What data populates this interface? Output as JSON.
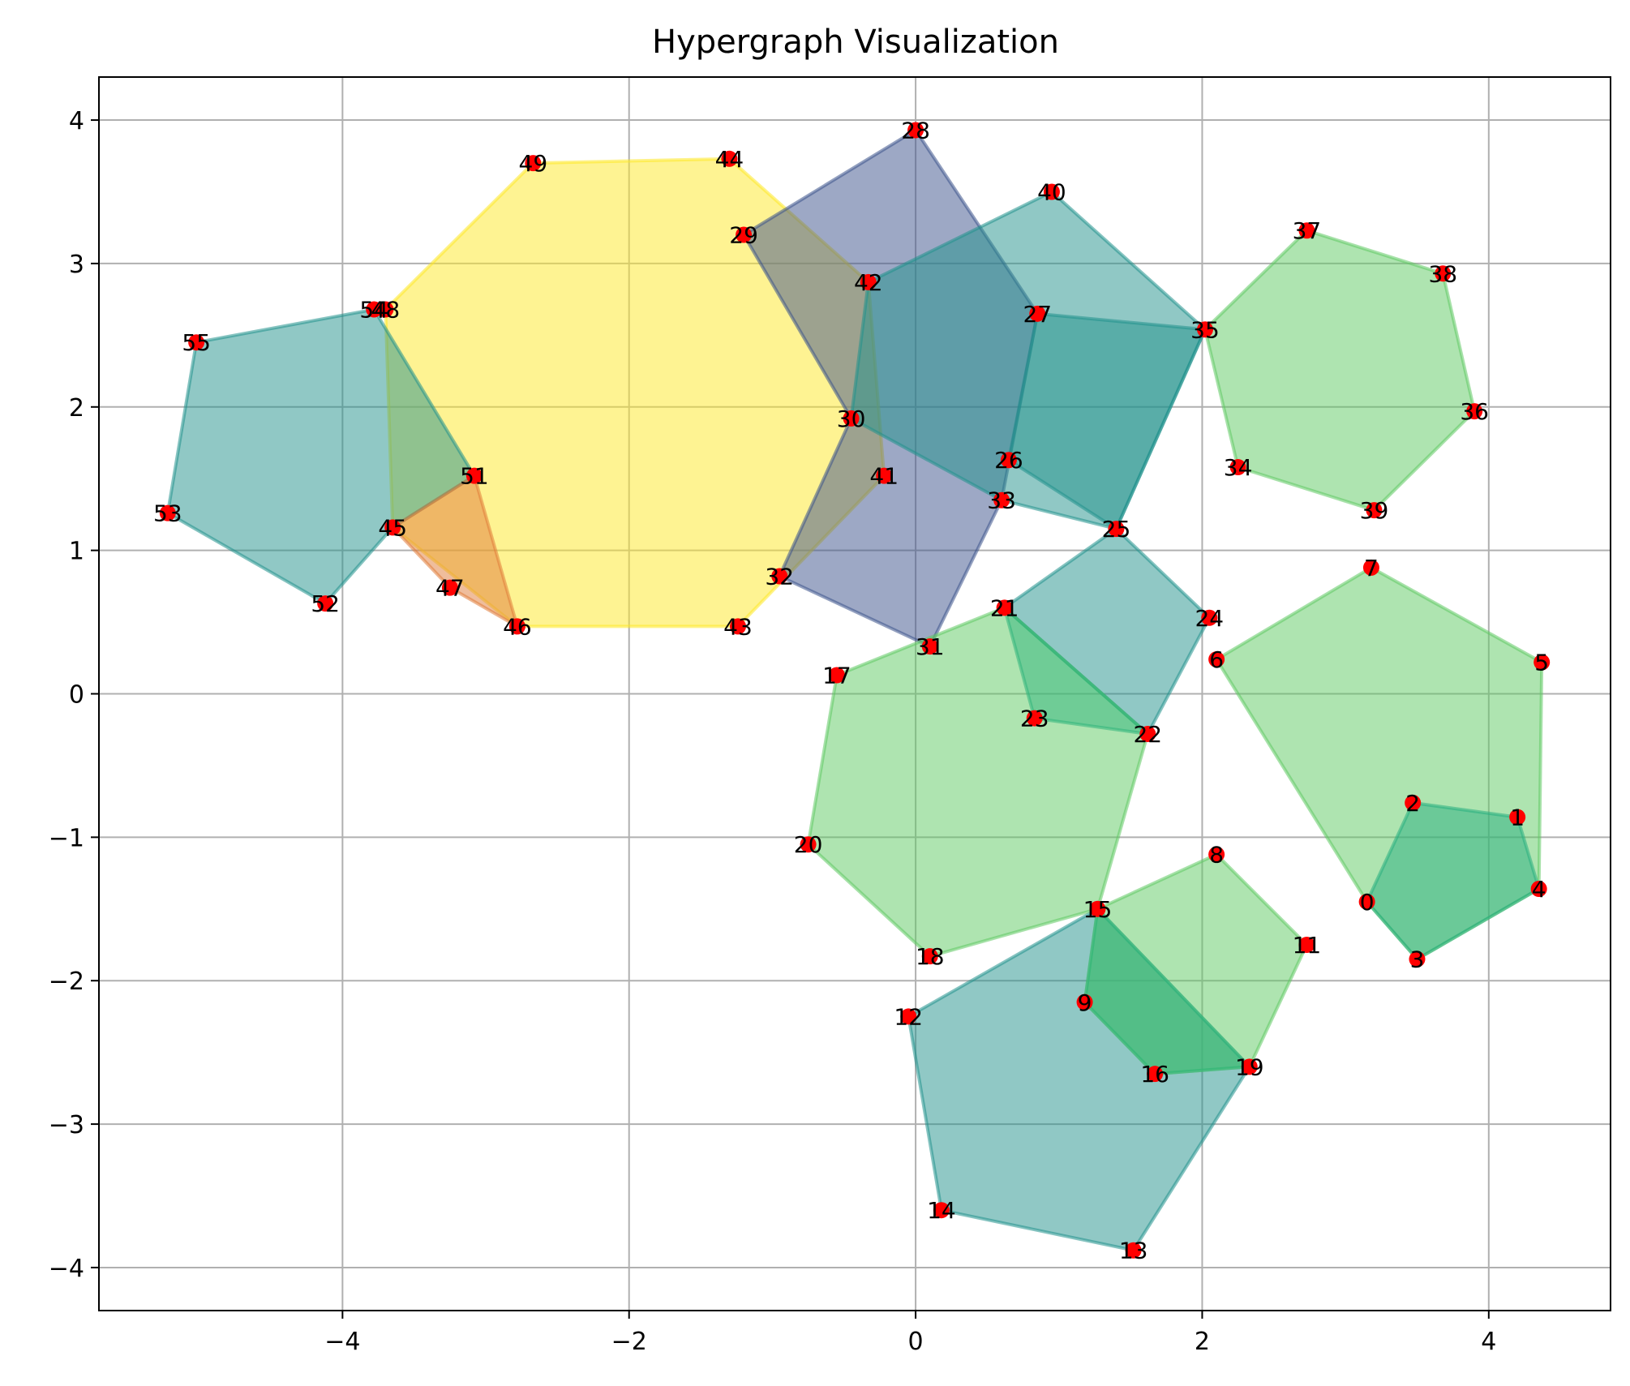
{
  "chart_data": {
    "type": "scatter",
    "title": "Hypergraph Visualization",
    "xlabel": "",
    "ylabel": "",
    "xlim": [
      -5.7,
      4.85
    ],
    "ylim": [
      -4.3,
      4.3
    ],
    "grid": true,
    "x_ticks": [
      -4,
      -2,
      0,
      2,
      4
    ],
    "y_ticks": [
      -4,
      -3,
      -2,
      -1,
      0,
      1,
      2,
      3,
      4
    ],
    "x_tick_labels": [
      "−4",
      "−2",
      "0",
      "2",
      "4"
    ],
    "y_tick_labels": [
      "−4",
      "−3",
      "−2",
      "−1",
      "0",
      "1",
      "2",
      "3",
      "4"
    ],
    "node_color": "#ff0000",
    "nodes": [
      {
        "id": "0",
        "x": 3.15,
        "y": -1.45
      },
      {
        "id": "1",
        "x": 4.2,
        "y": -0.86
      },
      {
        "id": "2",
        "x": 3.47,
        "y": -0.76
      },
      {
        "id": "3",
        "x": 3.5,
        "y": -1.85
      },
      {
        "id": "4",
        "x": 4.35,
        "y": -1.36
      },
      {
        "id": "5",
        "x": 4.37,
        "y": 0.22
      },
      {
        "id": "6",
        "x": 2.1,
        "y": 0.24
      },
      {
        "id": "7",
        "x": 3.18,
        "y": 0.88
      },
      {
        "id": "8",
        "x": 2.1,
        "y": -1.12
      },
      {
        "id": "9",
        "x": 1.18,
        "y": -2.15
      },
      {
        "id": "11",
        "x": 2.73,
        "y": -1.75
      },
      {
        "id": "12",
        "x": -0.05,
        "y": -2.25
      },
      {
        "id": "13",
        "x": 1.52,
        "y": -3.88
      },
      {
        "id": "14",
        "x": 0.18,
        "y": -3.6
      },
      {
        "id": "15",
        "x": 1.27,
        "y": -1.5
      },
      {
        "id": "16",
        "x": 1.67,
        "y": -2.65
      },
      {
        "id": "17",
        "x": -0.55,
        "y": 0.13
      },
      {
        "id": "18",
        "x": 0.1,
        "y": -1.83
      },
      {
        "id": "19",
        "x": 2.33,
        "y": -2.6
      },
      {
        "id": "20",
        "x": -0.75,
        "y": -1.05
      },
      {
        "id": "21",
        "x": 0.62,
        "y": 0.6
      },
      {
        "id": "22",
        "x": 1.62,
        "y": -0.28
      },
      {
        "id": "23",
        "x": 0.83,
        "y": -0.17
      },
      {
        "id": "24",
        "x": 2.05,
        "y": 0.53
      },
      {
        "id": "25",
        "x": 1.4,
        "y": 1.15
      },
      {
        "id": "26",
        "x": 0.65,
        "y": 1.63
      },
      {
        "id": "27",
        "x": 0.85,
        "y": 2.65
      },
      {
        "id": "28",
        "x": 0.0,
        "y": 3.93
      },
      {
        "id": "29",
        "x": -1.2,
        "y": 3.2
      },
      {
        "id": "30",
        "x": -0.45,
        "y": 1.92
      },
      {
        "id": "31",
        "x": 0.1,
        "y": 0.33
      },
      {
        "id": "32",
        "x": -0.95,
        "y": 0.82
      },
      {
        "id": "33",
        "x": 0.6,
        "y": 1.35
      },
      {
        "id": "34",
        "x": 2.25,
        "y": 1.58
      },
      {
        "id": "35",
        "x": 2.02,
        "y": 2.54
      },
      {
        "id": "36",
        "x": 3.9,
        "y": 1.97
      },
      {
        "id": "37",
        "x": 2.73,
        "y": 3.23
      },
      {
        "id": "38",
        "x": 3.68,
        "y": 2.93
      },
      {
        "id": "39",
        "x": 3.2,
        "y": 1.28
      },
      {
        "id": "40",
        "x": 0.95,
        "y": 3.5
      },
      {
        "id": "41",
        "x": -0.22,
        "y": 1.52
      },
      {
        "id": "42",
        "x": -0.33,
        "y": 2.87
      },
      {
        "id": "43",
        "x": -1.24,
        "y": 0.47
      },
      {
        "id": "44",
        "x": -1.3,
        "y": 3.73
      },
      {
        "id": "45",
        "x": -3.65,
        "y": 1.16
      },
      {
        "id": "46",
        "x": -2.78,
        "y": 0.47
      },
      {
        "id": "47",
        "x": -3.25,
        "y": 0.74
      },
      {
        "id": "48",
        "x": -3.7,
        "y": 2.68
      },
      {
        "id": "49",
        "x": -2.67,
        "y": 3.7
      },
      {
        "id": "51",
        "x": -3.08,
        "y": 1.52
      },
      {
        "id": "52",
        "x": -4.12,
        "y": 0.63
      },
      {
        "id": "53",
        "x": -5.22,
        "y": 1.26
      },
      {
        "id": "54",
        "x": -3.78,
        "y": 2.68
      },
      {
        "id": "55",
        "x": -5.02,
        "y": 2.45
      }
    ],
    "node_labels": [
      {
        "text": "0",
        "x": 3.15,
        "y": -1.45
      },
      {
        "text": "1",
        "x": 4.2,
        "y": -0.86
      },
      {
        "text": "2",
        "x": 3.47,
        "y": -0.76
      },
      {
        "text": "3",
        "x": 3.5,
        "y": -1.85
      },
      {
        "text": "4",
        "x": 4.35,
        "y": -1.36
      },
      {
        "text": "5",
        "x": 4.37,
        "y": 0.22
      },
      {
        "text": "6",
        "x": 2.1,
        "y": 0.24
      },
      {
        "text": "7",
        "x": 3.18,
        "y": 0.88
      },
      {
        "text": "8",
        "x": 2.1,
        "y": -1.12
      },
      {
        "text": "9",
        "x": 1.18,
        "y": -2.15
      },
      {
        "text": "11",
        "x": 2.73,
        "y": -1.75
      },
      {
        "text": "12",
        "x": -0.05,
        "y": -2.25
      },
      {
        "text": "13",
        "x": 1.52,
        "y": -3.88
      },
      {
        "text": "14",
        "x": 0.18,
        "y": -3.6
      },
      {
        "text": "15",
        "x": 1.27,
        "y": -1.5
      },
      {
        "text": "16",
        "x": 1.67,
        "y": -2.65
      },
      {
        "text": "17",
        "x": -0.55,
        "y": 0.13
      },
      {
        "text": "18",
        "x": 0.1,
        "y": -1.83
      },
      {
        "text": "19",
        "x": 2.33,
        "y": -2.6
      },
      {
        "text": "20",
        "x": -0.75,
        "y": -1.05
      },
      {
        "text": "21",
        "x": 0.62,
        "y": 0.6
      },
      {
        "text": "22",
        "x": 1.62,
        "y": -0.28
      },
      {
        "text": "23",
        "x": 0.83,
        "y": -0.17
      },
      {
        "text": "24",
        "x": 2.05,
        "y": 0.53
      },
      {
        "text": "25",
        "x": 1.4,
        "y": 1.15
      },
      {
        "text": "26",
        "x": 0.65,
        "y": 1.63
      },
      {
        "text": "27",
        "x": 0.85,
        "y": 2.65
      },
      {
        "text": "28",
        "x": 0.0,
        "y": 3.93
      },
      {
        "text": "29",
        "x": -1.2,
        "y": 3.2
      },
      {
        "text": "30",
        "x": -0.45,
        "y": 1.92
      },
      {
        "text": "31",
        "x": 0.1,
        "y": 0.33
      },
      {
        "text": "32",
        "x": -0.95,
        "y": 0.82
      },
      {
        "text": "33",
        "x": 0.6,
        "y": 1.35
      },
      {
        "text": "34",
        "x": 2.25,
        "y": 1.58
      },
      {
        "text": "35",
        "x": 2.02,
        "y": 2.54
      },
      {
        "text": "36",
        "x": 3.9,
        "y": 1.97
      },
      {
        "text": "37",
        "x": 2.73,
        "y": 3.23
      },
      {
        "text": "38",
        "x": 3.68,
        "y": 2.93
      },
      {
        "text": "39",
        "x": 3.2,
        "y": 1.28
      },
      {
        "text": "40",
        "x": 0.95,
        "y": 3.5
      },
      {
        "text": "41",
        "x": -0.22,
        "y": 1.52
      },
      {
        "text": "42",
        "x": -0.33,
        "y": 2.87
      },
      {
        "text": "43",
        "x": -1.24,
        "y": 0.47
      },
      {
        "text": "44",
        "x": -1.3,
        "y": 3.73
      },
      {
        "text": "45",
        "x": -3.65,
        "y": 1.16
      },
      {
        "text": "46",
        "x": -2.78,
        "y": 0.47
      },
      {
        "text": "47",
        "x": -3.25,
        "y": 0.74
      },
      {
        "text": "48",
        "x": -3.7,
        "y": 2.68
      },
      {
        "text": "49",
        "x": -2.67,
        "y": 3.7
      },
      {
        "text": "51",
        "x": -3.08,
        "y": 1.52
      },
      {
        "text": "52",
        "x": -4.12,
        "y": 0.63
      },
      {
        "text": "53",
        "x": -5.22,
        "y": 1.26
      },
      {
        "text": "54",
        "x": -3.78,
        "y": 2.68
      },
      {
        "text": "55",
        "x": -5.02,
        "y": 2.45
      }
    ],
    "hyperedges": [
      {
        "nodes": [
          "49",
          "44",
          "42",
          "41",
          "43",
          "46",
          "45",
          "48"
        ],
        "color": "#fde725"
      },
      {
        "nodes": [
          "28",
          "27",
          "33",
          "31",
          "32",
          "30",
          "29"
        ],
        "color": "#3b528b"
      },
      {
        "nodes": [
          "42",
          "40",
          "35",
          "25",
          "33",
          "30"
        ],
        "color": "#21918c"
      },
      {
        "nodes": [
          "27",
          "35",
          "25",
          "26"
        ],
        "color": "#21918c"
      },
      {
        "nodes": [
          "21",
          "25",
          "24",
          "22"
        ],
        "color": "#21918c"
      },
      {
        "nodes": [
          "55",
          "54",
          "51",
          "45",
          "52",
          "53"
        ],
        "color": "#21918c"
      },
      {
        "nodes": [
          "12",
          "15",
          "19",
          "13",
          "14"
        ],
        "color": "#21918c"
      },
      {
        "nodes": [
          "45",
          "51",
          "46",
          "47"
        ],
        "color": "#e07b39"
      },
      {
        "nodes": [
          "37",
          "38",
          "36",
          "39",
          "34",
          "35"
        ],
        "color": "#5ec962"
      },
      {
        "nodes": [
          "7",
          "5",
          "4",
          "3",
          "0",
          "6"
        ],
        "color": "#5ec962"
      },
      {
        "nodes": [
          "2",
          "1",
          "4",
          "3",
          "0"
        ],
        "color": "#28ae80"
      },
      {
        "nodes": [
          "17",
          "21",
          "22",
          "15",
          "18",
          "20"
        ],
        "color": "#5ec962"
      },
      {
        "nodes": [
          "21",
          "22",
          "23"
        ],
        "color": "#2fb47c"
      },
      {
        "nodes": [
          "8",
          "11",
          "19",
          "16",
          "9",
          "15"
        ],
        "color": "#5ec962"
      },
      {
        "nodes": [
          "15",
          "19",
          "16",
          "9"
        ],
        "color": "#2fb47c"
      }
    ]
  }
}
